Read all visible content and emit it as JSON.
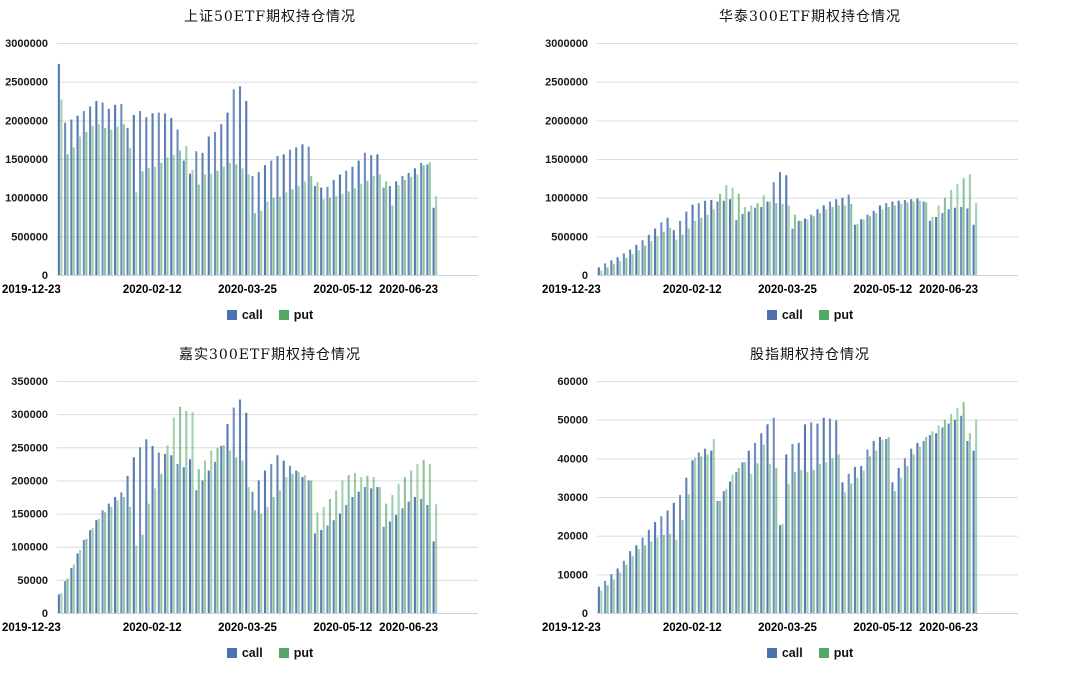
{
  "page": {
    "background": "#ffffff"
  },
  "colors": {
    "call": "#4C72B0",
    "put": "#55A868",
    "gridline": "#dcdcdc",
    "baseline": "#c9d2e0",
    "axis_text": "#1a1a1a"
  },
  "chart_data": [
    {
      "type": "bar",
      "title": "上证50ETF期权持仓情况",
      "xlabel": "",
      "ylabel": "",
      "ylim": [
        0,
        3000000
      ],
      "grid": true,
      "legend_position": "bottom",
      "y_ticks": [
        3000000,
        2500000,
        2000000,
        1500000,
        1000000,
        500000,
        0
      ],
      "x_tick_labels": [
        "2019-12-23",
        "2020-02-12",
        "2020-03-25",
        "2020-05-12",
        "2020-06-23"
      ],
      "series": [
        {
          "name": "call",
          "color": "#4C72B0",
          "values": [
            2730000,
            1970000,
            2010000,
            2060000,
            2120000,
            2180000,
            2250000,
            2230000,
            2150000,
            2200000,
            2210000,
            1900000,
            2070000,
            2120000,
            2040000,
            2090000,
            2100000,
            2090000,
            2030000,
            1880000,
            1480000,
            1310000,
            1600000,
            1580000,
            1790000,
            1850000,
            1950000,
            2100000,
            2400000,
            2440000,
            2250000,
            1280000,
            1330000,
            1420000,
            1480000,
            1540000,
            1560000,
            1620000,
            1650000,
            1690000,
            1660000,
            1150000,
            1130000,
            1140000,
            1230000,
            1300000,
            1350000,
            1400000,
            1480000,
            1580000,
            1550000,
            1560000,
            1130000,
            1150000,
            1210000,
            1280000,
            1320000,
            1380000,
            1450000,
            1430000,
            870000
          ]
        },
        {
          "name": "put",
          "color": "#55A868",
          "values": [
            2270000,
            1560000,
            1650000,
            1790000,
            1850000,
            1930000,
            1950000,
            1900000,
            1880000,
            1920000,
            1950000,
            1640000,
            1070000,
            1340000,
            1380000,
            1400000,
            1450000,
            1520000,
            1550000,
            1610000,
            1670000,
            1360000,
            1170000,
            1300000,
            1310000,
            1350000,
            1400000,
            1450000,
            1430000,
            1380000,
            1300000,
            800000,
            830000,
            950000,
            1000000,
            1010000,
            1070000,
            1110000,
            1150000,
            1210000,
            1280000,
            1200000,
            980000,
            1000000,
            1020000,
            1050000,
            1080000,
            1120000,
            1180000,
            1220000,
            1280000,
            1300000,
            1210000,
            900000,
            1160000,
            1230000,
            1270000,
            1300000,
            1420000,
            1460000,
            1020000
          ]
        }
      ]
    },
    {
      "type": "bar",
      "title": "华泰300ETF期权持仓情况",
      "xlabel": "",
      "ylabel": "",
      "ylim": [
        0,
        3000000
      ],
      "grid": true,
      "legend_position": "bottom",
      "y_ticks": [
        3000000,
        2500000,
        2000000,
        1500000,
        1000000,
        500000,
        0
      ],
      "x_tick_labels": [
        "2019-12-23",
        "2020-02-12",
        "2020-03-25",
        "2020-05-12",
        "2020-06-23"
      ],
      "series": [
        {
          "name": "call",
          "color": "#4C72B0",
          "values": [
            100000,
            150000,
            190000,
            230000,
            280000,
            330000,
            390000,
            450000,
            520000,
            600000,
            680000,
            740000,
            580000,
            700000,
            820000,
            910000,
            930000,
            960000,
            970000,
            950000,
            960000,
            980000,
            710000,
            790000,
            820000,
            870000,
            880000,
            950000,
            1200000,
            1330000,
            1290000,
            600000,
            700000,
            730000,
            780000,
            850000,
            900000,
            950000,
            980000,
            1000000,
            1040000,
            650000,
            720000,
            780000,
            830000,
            900000,
            930000,
            950000,
            960000,
            970000,
            980000,
            990000,
            950000,
            700000,
            750000,
            800000,
            850000,
            870000,
            880000,
            860000,
            650000
          ]
        },
        {
          "name": "put",
          "color": "#55A868",
          "values": [
            60000,
            100000,
            140000,
            180000,
            220000,
            270000,
            320000,
            380000,
            440000,
            500000,
            560000,
            610000,
            460000,
            520000,
            600000,
            700000,
            740000,
            780000,
            850000,
            1050000,
            1160000,
            1130000,
            1050000,
            880000,
            900000,
            930000,
            1030000,
            950000,
            930000,
            920000,
            900000,
            780000,
            700000,
            720000,
            760000,
            800000,
            850000,
            880000,
            900000,
            900000,
            920000,
            660000,
            720000,
            760000,
            800000,
            850000,
            880000,
            900000,
            920000,
            940000,
            950000,
            960000,
            940000,
            750000,
            900000,
            1000000,
            1100000,
            1180000,
            1250000,
            1300000,
            930000
          ]
        }
      ]
    },
    {
      "type": "bar",
      "title": "嘉实300ETF期权持仓情况",
      "xlabel": "",
      "ylabel": "",
      "ylim": [
        0,
        350000
      ],
      "grid": true,
      "legend_position": "bottom",
      "y_ticks": [
        350000,
        300000,
        250000,
        200000,
        150000,
        100000,
        50000,
        0
      ],
      "x_tick_labels": [
        "2019-12-23",
        "2020-02-12",
        "2020-03-25",
        "2020-05-12",
        "2020-06-23"
      ],
      "series": [
        {
          "name": "call",
          "color": "#4C72B0",
          "values": [
            28000,
            48000,
            68000,
            90000,
            110000,
            125000,
            140000,
            155000,
            165000,
            175000,
            182000,
            207000,
            235000,
            250000,
            262000,
            252000,
            242000,
            240000,
            238000,
            225000,
            220000,
            232000,
            185000,
            200000,
            215000,
            228000,
            252000,
            285000,
            310000,
            322000,
            302000,
            183000,
            200000,
            215000,
            225000,
            238000,
            230000,
            222000,
            215000,
            205000,
            200000,
            120000,
            125000,
            132000,
            140000,
            150000,
            163000,
            175000,
            183000,
            190000,
            188000,
            190000,
            130000,
            138000,
            148000,
            158000,
            168000,
            175000,
            172000,
            163000,
            108000
          ]
        },
        {
          "name": "put",
          "color": "#55A868",
          "values": [
            30000,
            52000,
            73000,
            95000,
            112000,
            128000,
            142000,
            152000,
            160000,
            170000,
            175000,
            160000,
            102000,
            118000,
            165000,
            188000,
            210000,
            253000,
            295000,
            311000,
            305000,
            303000,
            217000,
            230000,
            245000,
            249000,
            253000,
            245000,
            235000,
            230000,
            190000,
            155000,
            150000,
            160000,
            175000,
            185000,
            205000,
            210000,
            213000,
            208000,
            200000,
            152000,
            160000,
            172000,
            185000,
            200000,
            208000,
            211000,
            205000,
            207000,
            205000,
            190000,
            165000,
            178000,
            195000,
            205000,
            215000,
            225000,
            231000,
            225000,
            164000
          ]
        }
      ]
    },
    {
      "type": "bar",
      "title": "股指期权持仓情况",
      "xlabel": "",
      "ylabel": "",
      "ylim": [
        0,
        60000
      ],
      "grid": true,
      "legend_position": "bottom",
      "y_ticks": [
        60000,
        50000,
        40000,
        30000,
        20000,
        10000,
        0
      ],
      "x_tick_labels": [
        "2019-12-23",
        "2020-02-12",
        "2020-03-25",
        "2020-05-12",
        "2020-06-23"
      ],
      "series": [
        {
          "name": "call",
          "color": "#4C72B0",
          "values": [
            6800,
            8300,
            10000,
            11500,
            13500,
            16000,
            17500,
            19500,
            21500,
            23500,
            25000,
            26500,
            28500,
            30500,
            35000,
            39500,
            41500,
            42500,
            42000,
            29000,
            31500,
            34000,
            36500,
            39000,
            42000,
            44000,
            46500,
            48800,
            50500,
            22700,
            41000,
            43700,
            44000,
            48800,
            49300,
            49000,
            50500,
            50300,
            49800,
            33800,
            36000,
            37800,
            38000,
            42300,
            44500,
            45500,
            45000,
            33800,
            37500,
            40000,
            42500,
            44000,
            44500,
            46000,
            46500,
            48000,
            49000,
            50000,
            51000,
            44500,
            42000
          ]
        },
        {
          "name": "put",
          "color": "#55A868",
          "values": [
            5800,
            7200,
            8700,
            10500,
            12500,
            14800,
            16500,
            17500,
            18500,
            19500,
            20200,
            20500,
            19000,
            24000,
            30700,
            40200,
            40500,
            41000,
            45000,
            29000,
            32000,
            35800,
            37500,
            39000,
            36000,
            38700,
            43500,
            38500,
            37500,
            23000,
            33400,
            36500,
            37000,
            36500,
            37000,
            38500,
            39000,
            40000,
            41000,
            31200,
            33500,
            35000,
            36800,
            40500,
            42000,
            44800,
            45500,
            31500,
            35000,
            38000,
            41000,
            43000,
            45500,
            47000,
            48500,
            50000,
            51500,
            53000,
            54500,
            46500,
            50000
          ]
        }
      ]
    }
  ]
}
